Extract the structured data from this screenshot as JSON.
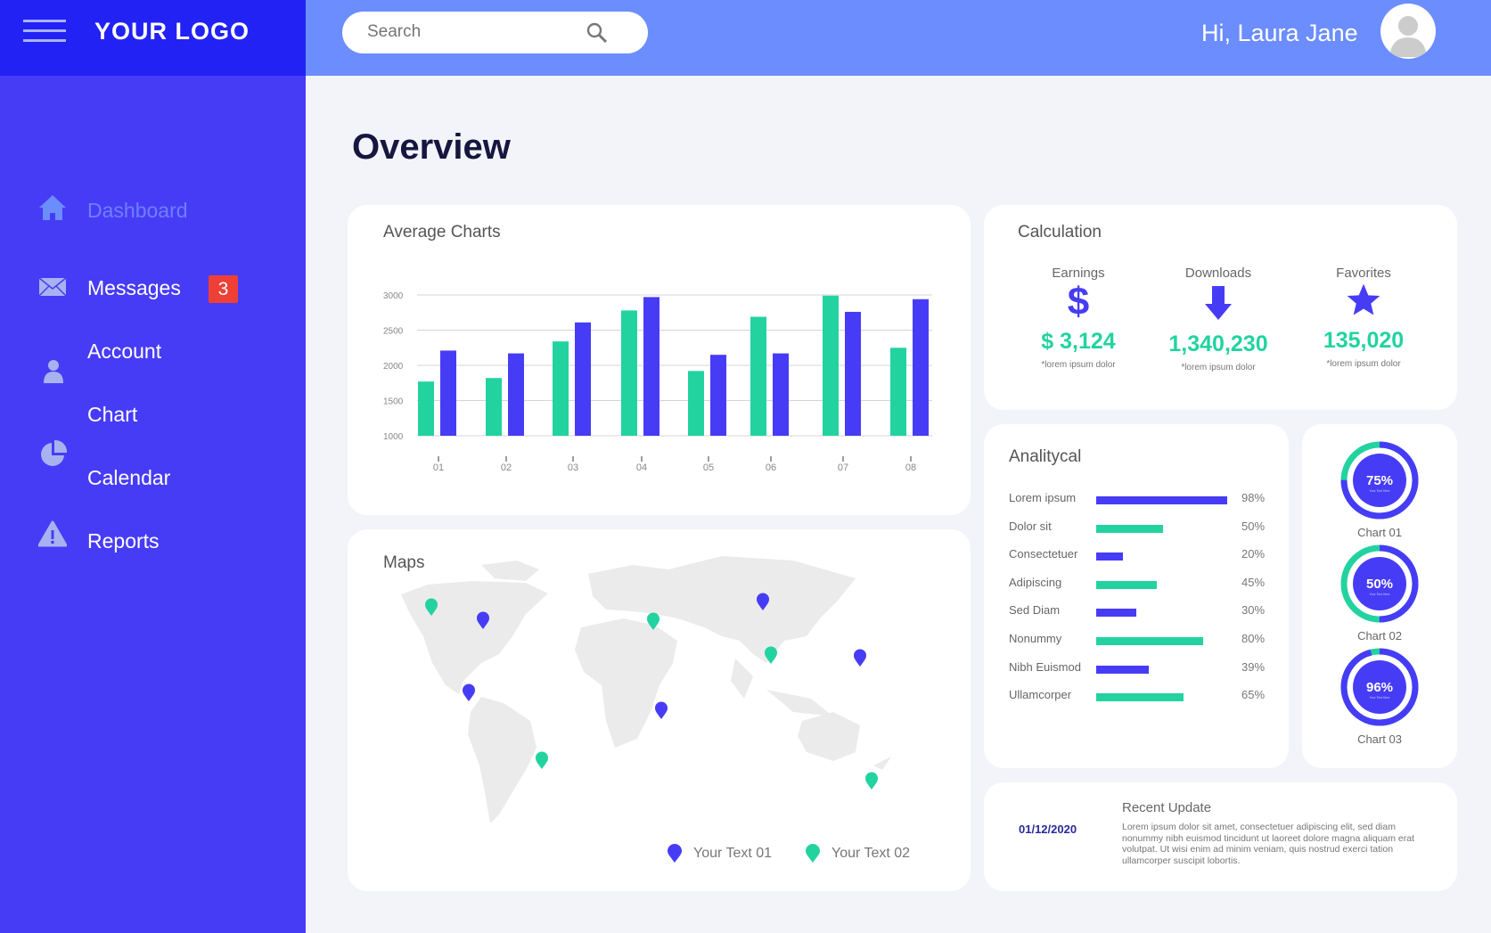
{
  "brand": {
    "logo": "YOUR LOGO"
  },
  "header": {
    "search_placeholder": "Search",
    "greeting": "Hi, Laura Jane"
  },
  "sidebar": {
    "items": [
      {
        "label": "Dashboard",
        "icon": "home-icon",
        "active": true
      },
      {
        "label": "Messages",
        "icon": "envelope-icon",
        "badge": "3"
      },
      {
        "label": "Account",
        "icon": "user-icon"
      },
      {
        "label": "Chart",
        "icon": "pie-chart-icon"
      },
      {
        "label": "Calendar"
      },
      {
        "label": "Reports",
        "icon": "warning-icon"
      }
    ]
  },
  "main": {
    "title": "Overview"
  },
  "colors": {
    "accent_blue": "#473cf6",
    "accent_green": "#22d3a0",
    "badge_red": "#ee4036",
    "sidebar": "#473cf6",
    "header": "#6b8dfd"
  },
  "chart_data": {
    "type": "bar",
    "title": "Average Charts",
    "categories": [
      "01",
      "02",
      "03",
      "04",
      "05",
      "06",
      "07",
      "08"
    ],
    "series": [
      {
        "color": "#22d3a0",
        "values": [
          1770,
          1820,
          2340,
          2780,
          1920,
          2690,
          2990,
          2250
        ]
      },
      {
        "color": "#473cf6",
        "values": [
          2210,
          2170,
          2610,
          2970,
          2150,
          2170,
          2760,
          2940
        ]
      }
    ],
    "yticks": [
      1000,
      1500,
      2000,
      2500,
      3000
    ],
    "ylim": [
      1000,
      3000
    ],
    "grid": true
  },
  "calculation": {
    "title": "Calculation",
    "items": [
      {
        "label": "Earnings",
        "icon": "dollar-icon",
        "value": "$ 3,124",
        "note": "*lorem ipsum dolor"
      },
      {
        "label": "Downloads",
        "icon": "arrow-down-icon",
        "value": "1,340,230",
        "note": "*lorem ipsum dolor"
      },
      {
        "label": "Favorites",
        "icon": "star-icon",
        "value": "135,020",
        "note": "*lorem ipsum dolor"
      }
    ]
  },
  "analytical": {
    "title": "Analitycal",
    "rows": [
      {
        "label": "Lorem ipsum",
        "value": 98,
        "pct": "98%",
        "color": "#473cf6"
      },
      {
        "label": "Dolor sit",
        "value": 50,
        "pct": "50%",
        "color": "#22d3a0"
      },
      {
        "label": "Consectetuer",
        "value": 20,
        "pct": "20%",
        "color": "#473cf6"
      },
      {
        "label": "Adipiscing",
        "value": 45,
        "pct": "45%",
        "color": "#22d3a0"
      },
      {
        "label": "Sed Diam",
        "value": 30,
        "pct": "30%",
        "color": "#473cf6"
      },
      {
        "label": "Nonummy",
        "value": 80,
        "pct": "80%",
        "color": "#22d3a0"
      },
      {
        "label": "Nibh Euismod",
        "value": 39,
        "pct": "39%",
        "color": "#473cf6"
      },
      {
        "label": "Ullamcorper",
        "value": 65,
        "pct": "65%",
        "color": "#22d3a0"
      }
    ]
  },
  "donuts": [
    {
      "label": "Chart 01",
      "value": 75,
      "text": "75%",
      "sub": "Your Text Here"
    },
    {
      "label": "Chart 02",
      "value": 50,
      "text": "50%",
      "sub": "Your Text Here"
    },
    {
      "label": "Chart 03",
      "value": 96,
      "text": "96%",
      "sub": "Your Text Here"
    }
  ],
  "maps": {
    "title": "Maps",
    "legend": [
      {
        "label": "Your Text 01",
        "color": "#473cf6"
      },
      {
        "label": "Your Text 02",
        "color": "#22d3a0"
      }
    ]
  },
  "recent": {
    "date": "01/12/2020",
    "title": "Recent Update",
    "body": "Lorem ipsum dolor sit amet, consectetuer adipiscing elit, sed diam nonummy nibh euismod tincidunt ut laoreet dolore magna aliquam erat volutpat. Ut wisi enim ad minim veniam, quis nostrud exerci tation ullamcorper suscipit lobortis."
  }
}
